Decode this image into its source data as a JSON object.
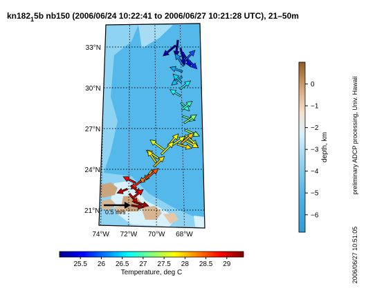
{
  "title": {
    "prefix": "kn182",
    "subscript": "1",
    "rest": "5b nb150 (2006/06/24 10:22:41 to 2006/06/27 10:21:28 UTC), 21–50m"
  },
  "map": {
    "lat_ticks": [
      "33°N",
      "30°N",
      "27°N",
      "24°N",
      "21°N"
    ],
    "lat_values": [
      33,
      30,
      27,
      24,
      21
    ],
    "lon_ticks": [
      "74°W",
      "72°W",
      "70°W",
      "68°W"
    ],
    "lon_values": [
      -74,
      -72,
      -70,
      -68
    ],
    "lat_range": [
      20,
      35
    ],
    "lon_range": [
      -74.5,
      -66.5
    ],
    "scale_label": "0.5 m/s",
    "scale_speed": 0.5
  },
  "depth_colorbar": {
    "label": "depth, km",
    "ticks": [
      "0",
      "−1",
      "−2",
      "−3",
      "−4",
      "−5",
      "−6"
    ],
    "tick_values": [
      0,
      -1,
      -2,
      -3,
      -4,
      -5,
      -6
    ],
    "range": [
      -6.8,
      1
    ]
  },
  "temp_colorbar": {
    "label": "Temperature, deg C",
    "ticks": [
      "25.5",
      "26",
      "26.5",
      "27",
      "27.5",
      "28",
      "28.5",
      "29"
    ],
    "tick_values": [
      25.5,
      26,
      26.5,
      27,
      27.5,
      28,
      28.5,
      29
    ],
    "range": [
      25,
      29.4
    ]
  },
  "credit": "preliminary ADCP processing, Univ. Hawaii",
  "timestamp": "2006/06/27 10:51:05",
  "track": [
    {
      "lon": -68.2,
      "lat": 33.5,
      "u": -0.05,
      "v": -0.4,
      "temp": 25.1
    },
    {
      "lon": -68.4,
      "lat": 33.1,
      "u": -0.3,
      "v": -0.25,
      "temp": 25.2
    },
    {
      "lon": -68.0,
      "lat": 32.9,
      "u": 0.1,
      "v": -0.4,
      "temp": 25.3
    },
    {
      "lon": -67.85,
      "lat": 32.6,
      "u": 0.2,
      "v": -0.35,
      "temp": 25.5
    },
    {
      "lon": -67.7,
      "lat": 32.3,
      "u": 0.3,
      "v": -0.3,
      "temp": 25.7
    },
    {
      "lon": -67.7,
      "lat": 32.0,
      "u": 0.25,
      "v": 0.25,
      "temp": 25.9
    },
    {
      "lon": -67.8,
      "lat": 31.6,
      "u": -0.2,
      "v": 0.3,
      "temp": 26.2
    },
    {
      "lon": -67.9,
      "lat": 31.2,
      "u": -0.3,
      "v": 0.1,
      "temp": 26.3
    },
    {
      "lon": -67.95,
      "lat": 30.8,
      "u": -0.25,
      "v": -0.2,
      "temp": 26.4
    },
    {
      "lon": -68.0,
      "lat": 30.4,
      "u": -0.2,
      "v": 0.2,
      "temp": 26.5
    },
    {
      "lon": -68.1,
      "lat": 29.9,
      "u": 0.25,
      "v": 0.2,
      "temp": 26.6
    },
    {
      "lon": -68.1,
      "lat": 29.4,
      "u": -0.25,
      "v": 0.15,
      "temp": 26.7
    },
    {
      "lon": -68.05,
      "lat": 28.9,
      "u": 0.2,
      "v": -0.2,
      "temp": 26.8
    },
    {
      "lon": -68.0,
      "lat": 28.4,
      "u": 0.25,
      "v": 0.2,
      "temp": 26.9
    },
    {
      "lon": -67.95,
      "lat": 27.9,
      "u": 0.3,
      "v": -0.1,
      "temp": 27.0
    },
    {
      "lon": -67.85,
      "lat": 27.4,
      "u": 0.3,
      "v": 0.2,
      "temp": 27.2
    },
    {
      "lon": -67.8,
      "lat": 26.9,
      "u": 0.35,
      "v": -0.15,
      "temp": 27.4
    },
    {
      "lon": -67.8,
      "lat": 26.5,
      "u": 0.3,
      "v": -0.25,
      "temp": 27.6
    },
    {
      "lon": -67.9,
      "lat": 26.2,
      "u": 0.35,
      "v": -0.2,
      "temp": 27.8
    },
    {
      "lon": -68.1,
      "lat": 25.9,
      "u": 0.3,
      "v": 0.25,
      "temp": 28.0
    },
    {
      "lon": -68.4,
      "lat": 25.85,
      "u": 0.35,
      "v": -0.1,
      "temp": 27.9
    },
    {
      "lon": -68.75,
      "lat": 25.8,
      "u": 0.3,
      "v": 0.2,
      "temp": 27.7
    },
    {
      "lon": -69.1,
      "lat": 25.7,
      "u": 0.25,
      "v": 0.3,
      "temp": 27.8
    },
    {
      "lon": -69.35,
      "lat": 25.4,
      "u": -0.35,
      "v": 0.25,
      "temp": 27.6
    },
    {
      "lon": -69.6,
      "lat": 25.1,
      "u": 0.3,
      "v": 0.3,
      "temp": 27.7
    },
    {
      "lon": -69.8,
      "lat": 24.8,
      "u": -0.3,
      "v": 0.2,
      "temp": 27.6
    },
    {
      "lon": -70.0,
      "lat": 24.5,
      "u": -0.2,
      "v": 0.3,
      "temp": 27.8
    },
    {
      "lon": -70.15,
      "lat": 24.2,
      "u": 0.25,
      "v": 0.25,
      "temp": 27.9
    },
    {
      "lon": -70.3,
      "lat": 23.9,
      "u": -0.2,
      "v": -0.25,
      "temp": 28.0
    },
    {
      "lon": -70.5,
      "lat": 23.6,
      "u": -0.25,
      "v": -0.2,
      "temp": 28.3
    },
    {
      "lon": -70.75,
      "lat": 23.3,
      "u": 0.3,
      "v": 0.25,
      "temp": 28.5
    },
    {
      "lon": -71.1,
      "lat": 23.15,
      "u": -0.25,
      "v": -0.2,
      "temp": 28.7
    },
    {
      "lon": -71.5,
      "lat": 23.0,
      "u": -0.3,
      "v": 0.15,
      "temp": 28.9
    },
    {
      "lon": -71.85,
      "lat": 22.8,
      "u": 0.25,
      "v": -0.2,
      "temp": 29.0
    },
    {
      "lon": -72.1,
      "lat": 22.55,
      "u": -0.25,
      "v": -0.1,
      "temp": 29.1
    },
    {
      "lon": -71.95,
      "lat": 22.2,
      "u": 0.2,
      "v": -0.25,
      "temp": 29.0
    },
    {
      "lon": -71.7,
      "lat": 21.9,
      "u": 0.25,
      "v": 0.2,
      "temp": 28.9
    },
    {
      "lon": -71.6,
      "lat": 21.6,
      "u": 0.35,
      "v": -0.1,
      "temp": 29.2
    },
    {
      "lon": -71.8,
      "lat": 21.35,
      "u": 0.3,
      "v": -0.05,
      "temp": 29.3
    }
  ]
}
